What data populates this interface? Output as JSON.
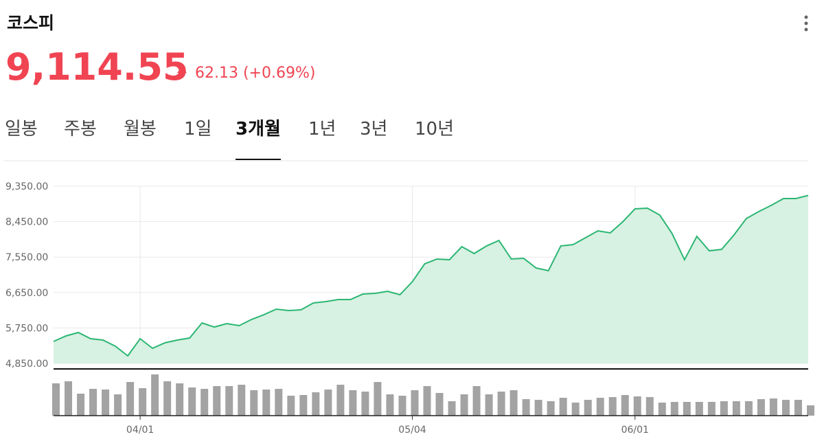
{
  "header": {
    "title": "코스피",
    "price": "9,114.55",
    "change": "62.13 (+0.69%)"
  },
  "tabs": {
    "items": [
      "일봉",
      "주봉",
      "월봉",
      "1일",
      "3개월",
      "1년",
      "3년",
      "10년"
    ],
    "active": 4
  },
  "chart_data": {
    "type": "area",
    "categories": [
      null,
      null,
      null,
      null,
      null,
      null,
      null,
      "04/01",
      null,
      null,
      null,
      null,
      null,
      null,
      null,
      null,
      null,
      null,
      null,
      null,
      null,
      null,
      null,
      null,
      null,
      null,
      null,
      null,
      null,
      "05/04",
      null,
      null,
      null,
      null,
      null,
      null,
      null,
      null,
      null,
      null,
      null,
      null,
      null,
      null,
      null,
      null,
      null,
      "06/01",
      null,
      null,
      null,
      null,
      null,
      null,
      null,
      null,
      null,
      null,
      null,
      null,
      null,
      null
    ],
    "series": [
      {
        "color": "#2bb673",
        "fill": "#d7f1e2",
        "values": [
          5408,
          5548,
          5635,
          5478,
          5443,
          5286,
          5042,
          5478,
          5234,
          5373,
          5443,
          5495,
          5879,
          5774,
          5862,
          5809,
          5966,
          6088,
          6228,
          6193,
          6210,
          6385,
          6420,
          6472,
          6472,
          6611,
          6629,
          6681,
          6594,
          6925,
          7379,
          7501,
          7483,
          7815,
          7640,
          7832,
          7972,
          7501,
          7518,
          7274,
          7204,
          7832,
          7867,
          8041,
          8216,
          8164,
          8443,
          8774,
          8791,
          8617,
          8146,
          7483,
          8076,
          7710,
          7745,
          8111,
          8530,
          8704,
          8861,
          9036,
          9036,
          9114.55
        ]
      }
    ],
    "volume": {
      "color": "#a3a3a3",
      "values": [
        47,
        50,
        32,
        39,
        38,
        31,
        49,
        40,
        60,
        50,
        47,
        41,
        39,
        43,
        43,
        45,
        37,
        38,
        39,
        29,
        30,
        34,
        38,
        45,
        37,
        35,
        49,
        31,
        29,
        37,
        43,
        33,
        21,
        31,
        43,
        31,
        35,
        37,
        24,
        23,
        21,
        26,
        19,
        23,
        26,
        27,
        30,
        28,
        27,
        19,
        20,
        20,
        20,
        20,
        21,
        21,
        21,
        24,
        25,
        23,
        23,
        15
      ]
    },
    "ylim": [
      4850,
      9350
    ],
    "yticks": [
      {
        "value": 4850,
        "label": "4,850.00"
      },
      {
        "value": 5750,
        "label": "5,750.00"
      },
      {
        "value": 6650,
        "label": "6,650.00"
      },
      {
        "value": 7550,
        "label": "7,550.00"
      },
      {
        "value": 8450,
        "label": "8,450.00"
      },
      {
        "value": 9350,
        "label": "9,350.00"
      }
    ],
    "grid": true
  }
}
